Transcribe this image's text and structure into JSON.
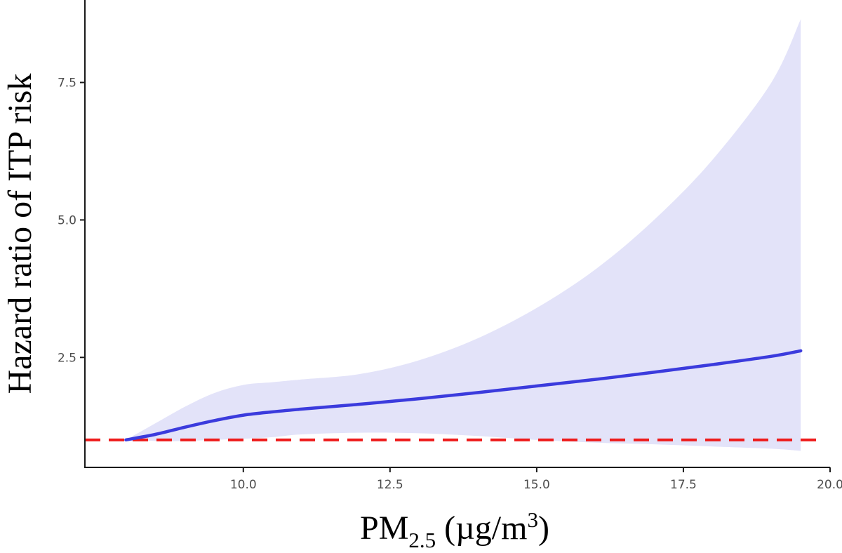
{
  "chart_data": {
    "type": "line",
    "title": "",
    "xlabel": {
      "main": "PM",
      "sub": "2.5",
      "unit_open": " (µg/m",
      "unit_sup": "3",
      "unit_close": ")"
    },
    "ylabel": "Hazard ratio of ITP risk",
    "xlim": [
      7.3,
      20.0
    ],
    "ylim": [
      0.5,
      9.0
    ],
    "x_ticks": [
      10.0,
      12.5,
      15.0,
      17.5,
      20.0
    ],
    "x_tick_labels": [
      "10.0",
      "12.5",
      "15.0",
      "17.5",
      "20.0"
    ],
    "y_ticks": [
      2.5,
      5.0,
      7.5
    ],
    "y_tick_labels": [
      "2.5",
      "5.0",
      "7.5"
    ],
    "grid": false,
    "reference_line": {
      "y": 1.0,
      "style": "dashed",
      "color": "#ee1c1c"
    },
    "series": [
      {
        "name": "Hazard ratio",
        "color": "#3b3bdd",
        "x": [
          8.0,
          8.5,
          9.0,
          9.5,
          10.0,
          10.5,
          11.0,
          12.0,
          13.0,
          14.0,
          15.0,
          16.0,
          17.0,
          18.0,
          19.0,
          19.5
        ],
        "y": [
          1.0,
          1.1,
          1.23,
          1.35,
          1.45,
          1.51,
          1.56,
          1.65,
          1.75,
          1.86,
          1.98,
          2.1,
          2.23,
          2.37,
          2.52,
          2.62
        ],
        "lower": [
          1.0,
          0.98,
          0.98,
          1.0,
          1.02,
          1.05,
          1.1,
          1.13,
          1.12,
          1.07,
          1.0,
          0.95,
          0.92,
          0.88,
          0.84,
          0.8
        ],
        "upper": [
          1.0,
          1.3,
          1.6,
          1.85,
          2.0,
          2.05,
          2.1,
          2.2,
          2.45,
          2.85,
          3.4,
          4.1,
          5.0,
          6.1,
          7.5,
          8.65
        ]
      }
    ],
    "band_color": "#e3e3f9"
  }
}
